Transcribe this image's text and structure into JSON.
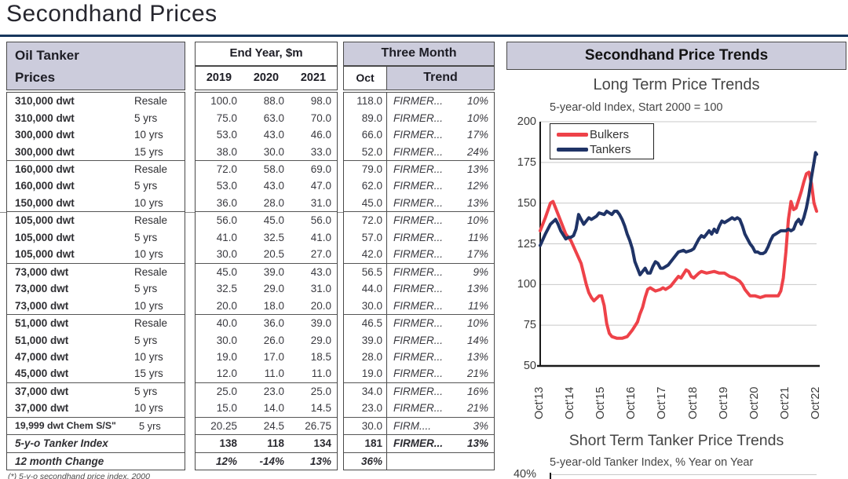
{
  "page": {
    "title": "Secondhand Prices",
    "footnote": "(*) 5-y-o secondhand price index, 2000"
  },
  "colors": {
    "header_shade": "#ccccdc",
    "title_rule_navy": "#17365d",
    "grid": "#c8c8c8",
    "axis": "#1a1a1a",
    "bulkers_red": "#ee4249",
    "tankers_navy": "#1f3366"
  },
  "table": {
    "left_title1": "Oil Tanker",
    "left_title2": "Prices",
    "mid_title": "End Year, $m",
    "years": [
      "2019",
      "2020",
      "2021"
    ],
    "right_title": "Three Month",
    "oct_label": "Oct",
    "trend_label": "Trend",
    "rows": [
      {
        "name": "310,000 dwt",
        "age": "Resale",
        "v19": "100.0",
        "v20": "88.0",
        "v21": "98.0",
        "oct": "118.0",
        "trend": "FIRMER...",
        "pct": "10%",
        "cls": ""
      },
      {
        "name": "310,000 dwt",
        "age": "5 yrs",
        "v19": "75.0",
        "v20": "63.0",
        "v21": "70.0",
        "oct": "89.0",
        "trend": "FIRMER...",
        "pct": "10%",
        "cls": ""
      },
      {
        "name": "300,000 dwt",
        "age": "10 yrs",
        "v19": "53.0",
        "v20": "43.0",
        "v21": "46.0",
        "oct": "66.0",
        "trend": "FIRMER...",
        "pct": "17%",
        "cls": ""
      },
      {
        "name": "300,000 dwt",
        "age": "15 yrs",
        "v19": "38.0",
        "v20": "30.0",
        "v21": "33.0",
        "oct": "52.0",
        "trend": "FIRMER...",
        "pct": "24%",
        "cls": ""
      },
      {
        "name": "160,000 dwt",
        "age": "Resale",
        "v19": "72.0",
        "v20": "58.0",
        "v21": "69.0",
        "oct": "79.0",
        "trend": "FIRMER...",
        "pct": "13%",
        "cls": "g"
      },
      {
        "name": "160,000 dwt",
        "age": "5 yrs",
        "v19": "53.0",
        "v20": "43.0",
        "v21": "47.0",
        "oct": "62.0",
        "trend": "FIRMER...",
        "pct": "12%",
        "cls": ""
      },
      {
        "name": "150,000 dwt",
        "age": "10 yrs",
        "v19": "36.0",
        "v20": "28.0",
        "v21": "31.0",
        "oct": "45.0",
        "trend": "FIRMER...",
        "pct": "13%",
        "cls": ""
      },
      {
        "name": "105,000 dwt",
        "age": "Resale",
        "v19": "56.0",
        "v20": "45.0",
        "v21": "56.0",
        "oct": "72.0",
        "trend": "FIRMER...",
        "pct": "10%",
        "cls": "g"
      },
      {
        "name": "105,000 dwt",
        "age": "5 yrs",
        "v19": "41.0",
        "v20": "32.5",
        "v21": "41.0",
        "oct": "57.0",
        "trend": "FIRMER...",
        "pct": "11%",
        "cls": ""
      },
      {
        "name": "105,000 dwt",
        "age": "10 yrs",
        "v19": "30.0",
        "v20": "20.5",
        "v21": "27.0",
        "oct": "42.0",
        "trend": "FIRMER...",
        "pct": "17%",
        "cls": ""
      },
      {
        "name": "73,000 dwt",
        "age": "Resale",
        "v19": "45.0",
        "v20": "39.0",
        "v21": "43.0",
        "oct": "56.5",
        "trend": "FIRMER...",
        "pct": "9%",
        "cls": "g"
      },
      {
        "name": "73,000 dwt",
        "age": "5 yrs",
        "v19": "32.5",
        "v20": "29.0",
        "v21": "31.0",
        "oct": "44.0",
        "trend": "FIRMER...",
        "pct": "13%",
        "cls": ""
      },
      {
        "name": "73,000 dwt",
        "age": "10 yrs",
        "v19": "20.0",
        "v20": "18.0",
        "v21": "20.0",
        "oct": "30.0",
        "trend": "FIRMER...",
        "pct": "11%",
        "cls": ""
      },
      {
        "name": "51,000 dwt",
        "age": "Resale",
        "v19": "40.0",
        "v20": "36.0",
        "v21": "39.0",
        "oct": "46.5",
        "trend": "FIRMER...",
        "pct": "10%",
        "cls": "g"
      },
      {
        "name": "51,000 dwt",
        "age": "5 yrs",
        "v19": "30.0",
        "v20": "26.0",
        "v21": "29.0",
        "oct": "39.0",
        "trend": "FIRMER...",
        "pct": "14%",
        "cls": ""
      },
      {
        "name": "47,000 dwt",
        "age": "10 yrs",
        "v19": "19.0",
        "v20": "17.0",
        "v21": "18.5",
        "oct": "28.0",
        "trend": "FIRMER...",
        "pct": "13%",
        "cls": ""
      },
      {
        "name": "45,000 dwt",
        "age": "15 yrs",
        "v19": "12.0",
        "v20": "11.0",
        "v21": "11.0",
        "oct": "19.0",
        "trend": "FIRMER...",
        "pct": "21%",
        "cls": ""
      },
      {
        "name": "37,000 dwt",
        "age": "5 yrs",
        "v19": "25.0",
        "v20": "23.0",
        "v21": "25.0",
        "oct": "34.0",
        "trend": "FIRMER...",
        "pct": "16%",
        "cls": "g"
      },
      {
        "name": "37,000 dwt",
        "age": "10 yrs",
        "v19": "15.0",
        "v20": "14.0",
        "v21": "14.5",
        "oct": "23.0",
        "trend": "FIRMER...",
        "pct": "21%",
        "cls": ""
      },
      {
        "name": "19,999 dwt Chem S/S\"",
        "age": "5 yrs",
        "v19": "20.25",
        "v20": "24.5",
        "v21": "26.75",
        "oct": "30.0",
        "trend": "FIRM....",
        "pct": "3%",
        "cls": "g small"
      },
      {
        "name": "5-y-o Tanker Index",
        "age": "",
        "v19": "138",
        "v20": "118",
        "v21": "134",
        "oct": "181",
        "trend": "FIRMER...",
        "pct": "13%",
        "cls": "g idx"
      },
      {
        "name": "12 month Change",
        "age": "",
        "v19": "12%",
        "v20": "-14%",
        "v21": "13%",
        "oct": "36%",
        "trend": "",
        "pct": "",
        "cls": "g chg"
      }
    ]
  },
  "panel": {
    "title": "Secondhand Price Trends"
  },
  "chart_data": [
    {
      "type": "line",
      "title": "Long Term Price Trends",
      "subtitle": "5-year-old Index, Start 2000 = 100",
      "ylim": [
        50,
        200
      ],
      "yticks": [
        200,
        175,
        150,
        125,
        100,
        75,
        50
      ],
      "xticks": [
        "Oct'13",
        "Oct'14",
        "Oct'15",
        "Oct'16",
        "Oct'17",
        "Oct'18",
        "Oct'19",
        "Oct'20",
        "Oct'21",
        "Oct'22"
      ],
      "x_unit": "months since Oct 2013",
      "x_range": [
        0,
        108
      ],
      "grid": true,
      "legend_position": "upper-left",
      "series": [
        {
          "name": "Bulkers",
          "color": "#ee4249",
          "points": [
            [
              0,
              133
            ],
            [
              2,
              141
            ],
            [
              4,
              150
            ],
            [
              5,
              151
            ],
            [
              6,
              147
            ],
            [
              8,
              139
            ],
            [
              10,
              131
            ],
            [
              12,
              127
            ],
            [
              14,
              120
            ],
            [
              16,
              113
            ],
            [
              18,
              100
            ],
            [
              19,
              95
            ],
            [
              20,
              92
            ],
            [
              21,
              90
            ],
            [
              23,
              93
            ],
            [
              24,
              93
            ],
            [
              25,
              87
            ],
            [
              26,
              76
            ],
            [
              27,
              70
            ],
            [
              28,
              68
            ],
            [
              30,
              67
            ],
            [
              32,
              67
            ],
            [
              34,
              68
            ],
            [
              35,
              70
            ],
            [
              36,
              72
            ],
            [
              38,
              77
            ],
            [
              39,
              82
            ],
            [
              40,
              86
            ],
            [
              41,
              92
            ],
            [
              42,
              97
            ],
            [
              43,
              98
            ],
            [
              45,
              96
            ],
            [
              47,
              97
            ],
            [
              48,
              98
            ],
            [
              49,
              97
            ],
            [
              51,
              99
            ],
            [
              53,
              103
            ],
            [
              54,
              105
            ],
            [
              55,
              104
            ],
            [
              57,
              109
            ],
            [
              58,
              108
            ],
            [
              59,
              105
            ],
            [
              60,
              104
            ],
            [
              62,
              107
            ],
            [
              63,
              108
            ],
            [
              65,
              107
            ],
            [
              68,
              108
            ],
            [
              70,
              107
            ],
            [
              72,
              107
            ],
            [
              74,
              105
            ],
            [
              76,
              104
            ],
            [
              78,
              102
            ],
            [
              79,
              100
            ],
            [
              80,
              97
            ],
            [
              81,
              95
            ],
            [
              82,
              93
            ],
            [
              84,
              93
            ],
            [
              86,
              92
            ],
            [
              88,
              93
            ],
            [
              90,
              93
            ],
            [
              92,
              93
            ],
            [
              93,
              93
            ],
            [
              94,
              96
            ],
            [
              95,
              104
            ],
            [
              96,
              120
            ],
            [
              97,
              140
            ],
            [
              98,
              151
            ],
            [
              99,
              146
            ],
            [
              100,
              147
            ],
            [
              101,
              152
            ],
            [
              102,
              157
            ],
            [
              103,
              163
            ],
            [
              104,
              168
            ],
            [
              105,
              169
            ],
            [
              106,
              162
            ],
            [
              107,
              150
            ],
            [
              108,
              145
            ]
          ]
        },
        {
          "name": "Tankers",
          "color": "#1f3366",
          "points": [
            [
              0,
              124
            ],
            [
              2,
              131
            ],
            [
              4,
              137
            ],
            [
              6,
              140
            ],
            [
              7,
              137
            ],
            [
              8,
              133
            ],
            [
              10,
              128
            ],
            [
              11,
              129
            ],
            [
              12,
              129
            ],
            [
              13,
              130
            ],
            [
              14,
              134
            ],
            [
              15,
              143
            ],
            [
              16,
              140
            ],
            [
              17,
              137
            ],
            [
              19,
              141
            ],
            [
              20,
              140
            ],
            [
              22,
              142
            ],
            [
              23,
              144
            ],
            [
              25,
              143
            ],
            [
              26,
              145
            ],
            [
              28,
              143
            ],
            [
              29,
              145
            ],
            [
              30,
              145
            ],
            [
              31,
              143
            ],
            [
              32,
              140
            ],
            [
              33,
              136
            ],
            [
              34,
              131
            ],
            [
              35,
              127
            ],
            [
              36,
              122
            ],
            [
              37,
              114
            ],
            [
              38,
              110
            ],
            [
              39,
              106
            ],
            [
              40,
              108
            ],
            [
              41,
              110
            ],
            [
              42,
              107
            ],
            [
              43,
              107
            ],
            [
              44,
              111
            ],
            [
              45,
              114
            ],
            [
              46,
              113
            ],
            [
              47,
              110
            ],
            [
              48,
              110
            ],
            [
              50,
              112
            ],
            [
              52,
              116
            ],
            [
              54,
              120
            ],
            [
              56,
              121
            ],
            [
              57,
              120
            ],
            [
              59,
              121
            ],
            [
              60,
              122
            ],
            [
              61,
              125
            ],
            [
              62,
              128
            ],
            [
              63,
              130
            ],
            [
              64,
              129
            ],
            [
              65,
              131
            ],
            [
              66,
              133
            ],
            [
              67,
              131
            ],
            [
              68,
              134
            ],
            [
              69,
              132
            ],
            [
              70,
              136
            ],
            [
              71,
              139
            ],
            [
              72,
              138
            ],
            [
              73,
              139
            ],
            [
              74,
              140
            ],
            [
              75,
              141
            ],
            [
              76,
              140
            ],
            [
              77,
              141
            ],
            [
              78,
              140
            ],
            [
              79,
              136
            ],
            [
              80,
              131
            ],
            [
              81,
              128
            ],
            [
              82,
              125
            ],
            [
              83,
              123
            ],
            [
              84,
              120
            ],
            [
              85,
              120
            ],
            [
              86,
              119
            ],
            [
              87,
              119
            ],
            [
              88,
              120
            ],
            [
              89,
              123
            ],
            [
              90,
              127
            ],
            [
              91,
              130
            ],
            [
              92,
              131
            ],
            [
              93,
              132
            ],
            [
              94,
              133
            ],
            [
              96,
              133
            ],
            [
              97,
              134
            ],
            [
              98,
              133
            ],
            [
              99,
              134
            ],
            [
              100,
              138
            ],
            [
              101,
              140
            ],
            [
              102,
              137
            ],
            [
              103,
              141
            ],
            [
              104,
              147
            ],
            [
              105,
              155
            ],
            [
              106,
              166
            ],
            [
              107,
              175
            ],
            [
              107.6,
              181
            ],
            [
              108,
              180
            ]
          ]
        }
      ]
    },
    {
      "type": "line",
      "title": "Short Term Tanker Price Trends",
      "subtitle": "5-year-old Tanker Index, % Year on Year",
      "first_visible_ytick": "40%",
      "series": []
    }
  ]
}
